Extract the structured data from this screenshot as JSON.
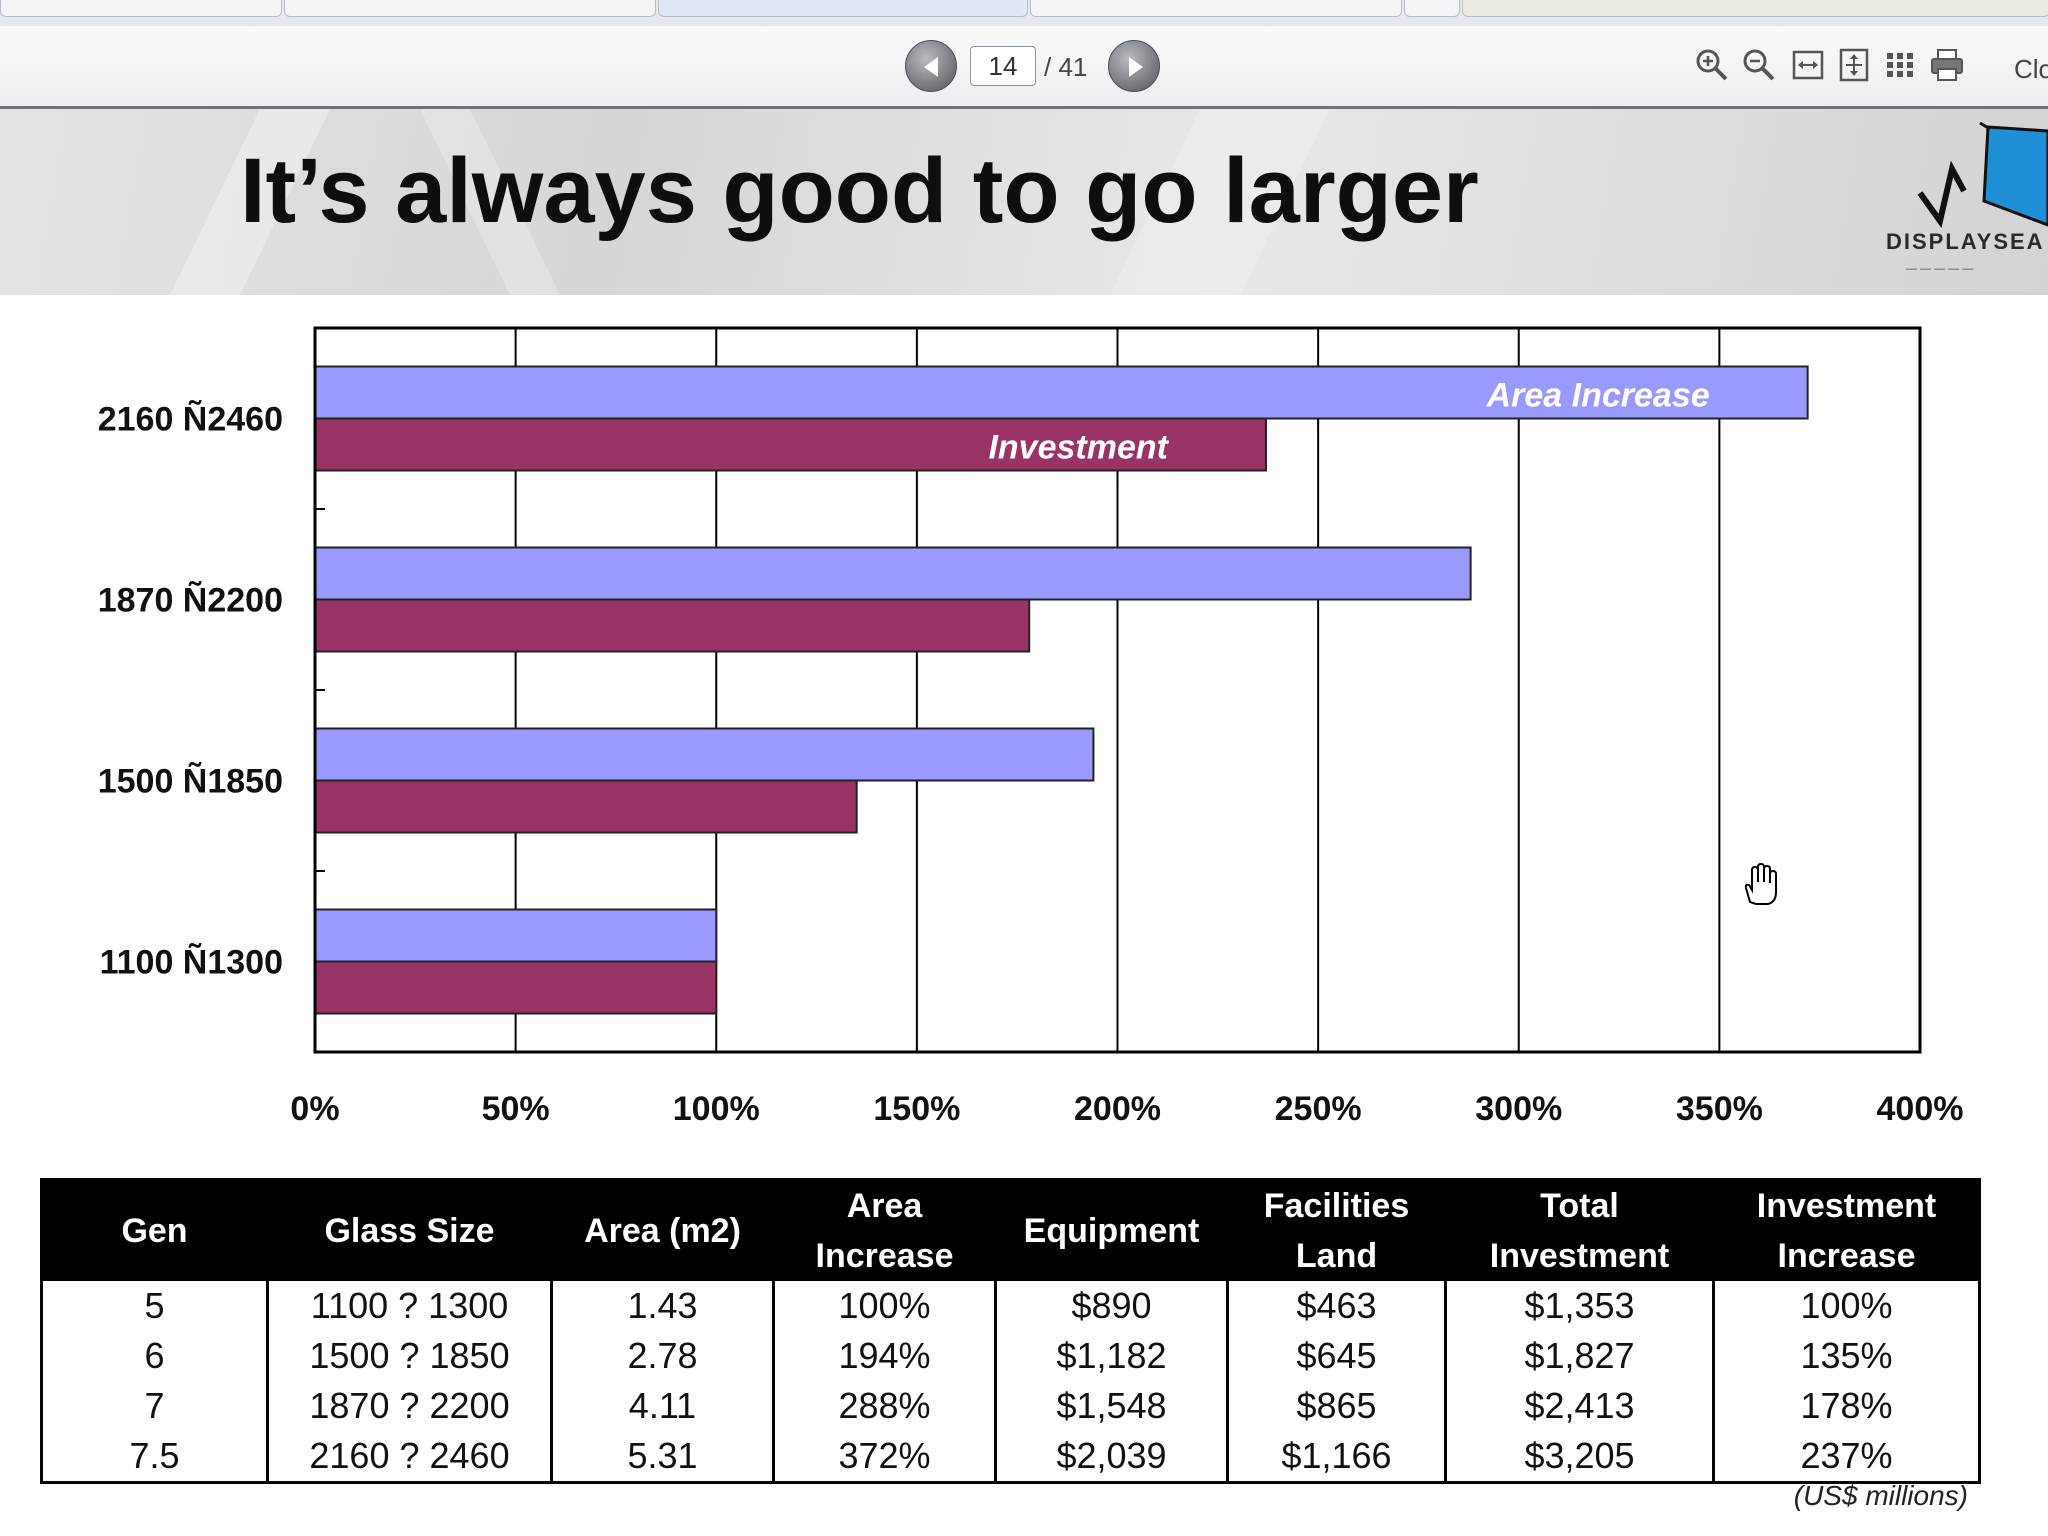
{
  "viewer": {
    "page_current": "14",
    "page_total": "/ 41",
    "close_label": "Clo"
  },
  "slide": {
    "title": "It’s always good to go larger",
    "logo_text": "DISPLAYSEA",
    "footnote": "(US$ millions)"
  },
  "chart_data": {
    "type": "bar",
    "orientation": "horizontal",
    "categories": [
      "2160 Ñ2460",
      "1870 Ñ2200",
      "1500 Ñ1850",
      "1100 Ñ1300"
    ],
    "series": [
      {
        "name": "Area Increase",
        "values": [
          372,
          288,
          194,
          100
        ],
        "color": "#9999ff"
      },
      {
        "name": "Investment",
        "values": [
          237,
          178,
          135,
          100
        ],
        "color": "#993366"
      }
    ],
    "xlim": [
      0,
      400
    ],
    "xticks": [
      "0%",
      "50%",
      "100%",
      "150%",
      "200%",
      "250%",
      "300%",
      "350%",
      "400%"
    ],
    "grid": true,
    "legend": "inline labels on top bars"
  },
  "table": {
    "headers": [
      [
        "Gen"
      ],
      [
        "Glass Size"
      ],
      [
        "Area (m2)"
      ],
      [
        "Area",
        "Increase"
      ],
      [
        "Equipment"
      ],
      [
        "Facilities",
        "Land"
      ],
      [
        "Total",
        "Investment"
      ],
      [
        "Investment",
        "Increase"
      ]
    ],
    "rows": [
      [
        "5",
        "1100 ? 1300",
        "1.43",
        "100%",
        "$890",
        "$463",
        "$1,353",
        "100%"
      ],
      [
        "6",
        "1500 ? 1850",
        "2.78",
        "194%",
        "$1,182",
        "$645",
        "$1,827",
        "135%"
      ],
      [
        "7",
        "1870 ? 2200",
        "4.11",
        "288%",
        "$1,548",
        "$865",
        "$2,413",
        "178%"
      ],
      [
        "7.5",
        "2160 ? 2460",
        "5.31",
        "372%",
        "$2,039",
        "$1,166",
        "$3,205",
        "237%"
      ]
    ]
  }
}
